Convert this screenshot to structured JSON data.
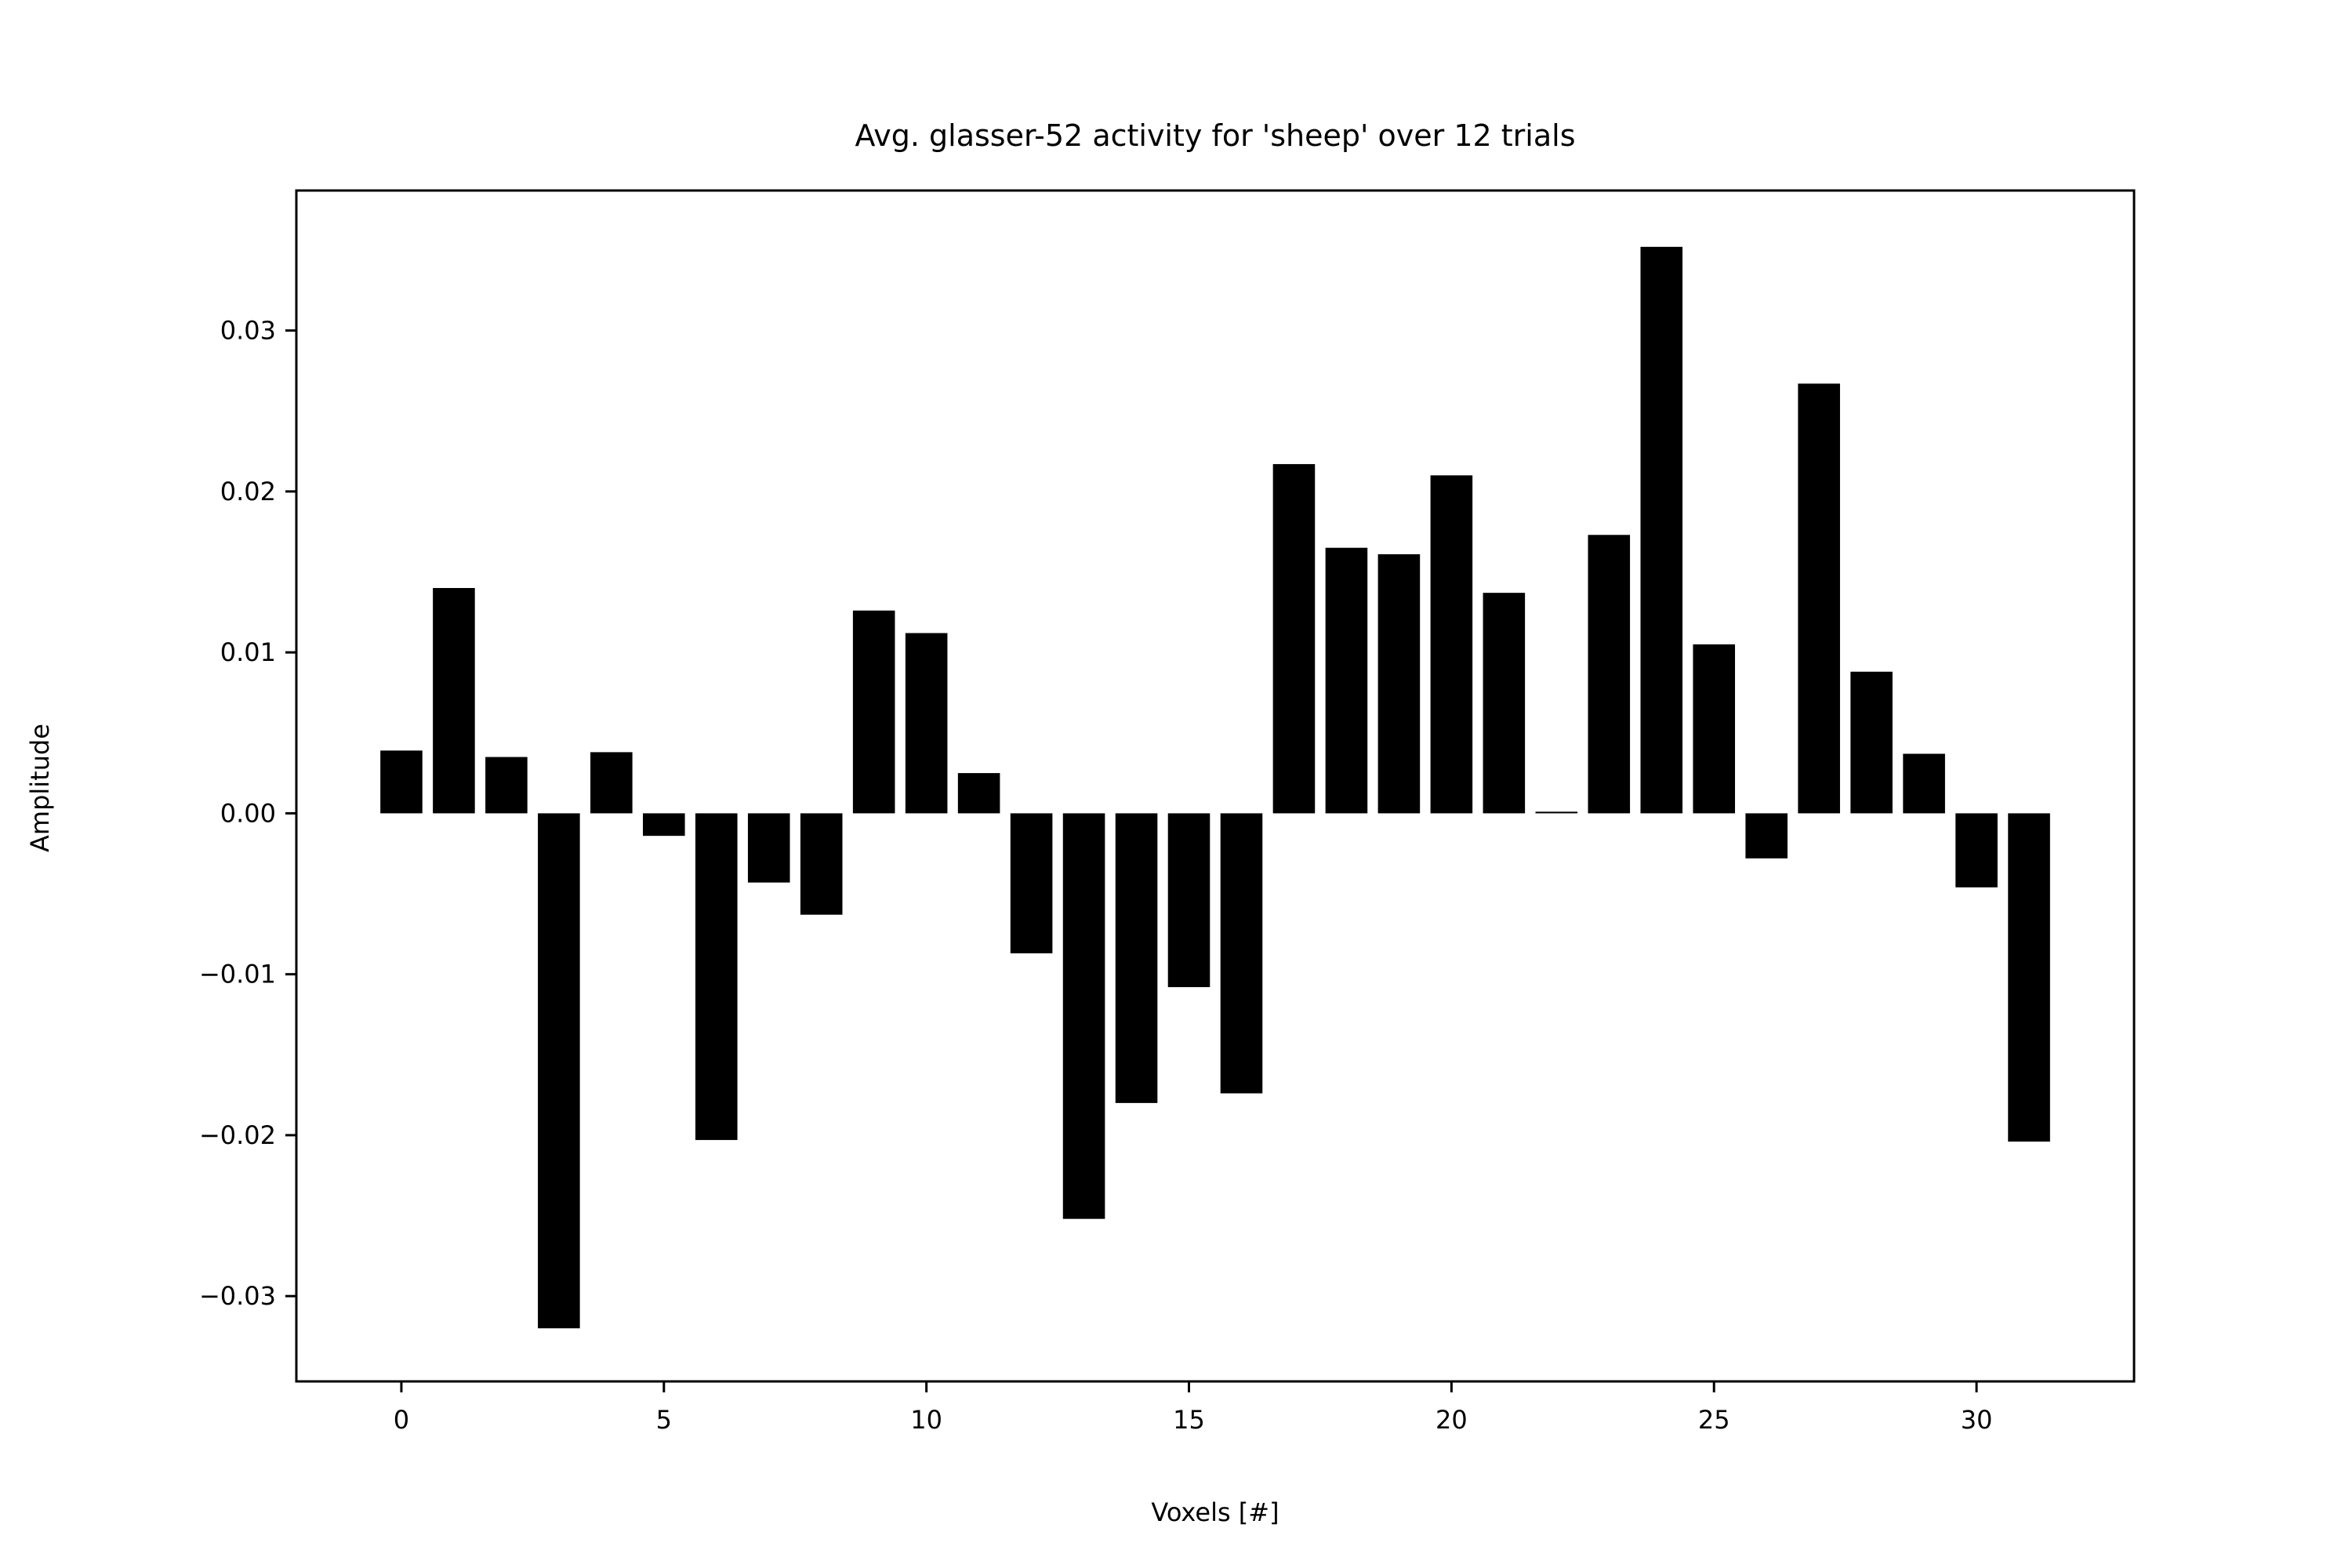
{
  "chart_data": {
    "type": "bar",
    "title": "Avg. glasser-52 activity for 'sheep' over 12 trials",
    "xlabel": "Voxels [#]",
    "ylabel": "Amplitude",
    "x": [
      0,
      1,
      2,
      3,
      4,
      5,
      6,
      7,
      8,
      9,
      10,
      11,
      12,
      13,
      14,
      15,
      16,
      17,
      18,
      19,
      20,
      21,
      22,
      23,
      24,
      25,
      26,
      27,
      28,
      29,
      30,
      31
    ],
    "values": [
      0.0039,
      0.014,
      0.0035,
      -0.032,
      0.0038,
      -0.0014,
      -0.0203,
      -0.0043,
      -0.0063,
      0.0126,
      0.0112,
      0.0025,
      -0.0087,
      -0.0252,
      -0.018,
      -0.0108,
      -0.0174,
      0.0217,
      0.0165,
      0.0161,
      0.021,
      0.0137,
      0.0001,
      0.0173,
      0.0352,
      0.0105,
      -0.0028,
      0.0267,
      0.0088,
      0.0037,
      -0.0046,
      -0.0204
    ],
    "xlim": [
      -2,
      33
    ],
    "ylim": [
      -0.0353,
      0.0387
    ],
    "xticks": [
      0,
      5,
      10,
      15,
      20,
      25,
      30
    ],
    "xtick_labels": [
      "0",
      "5",
      "10",
      "15",
      "20",
      "25",
      "30"
    ],
    "yticks": [
      -0.03,
      -0.02,
      -0.01,
      0.0,
      0.01,
      0.02,
      0.03
    ],
    "ytick_labels": [
      "−0.03",
      "−0.02",
      "−0.01",
      "0.00",
      "0.01",
      "0.02",
      "0.03"
    ],
    "bar_color": "#000000",
    "grid": false,
    "legend": "none"
  }
}
